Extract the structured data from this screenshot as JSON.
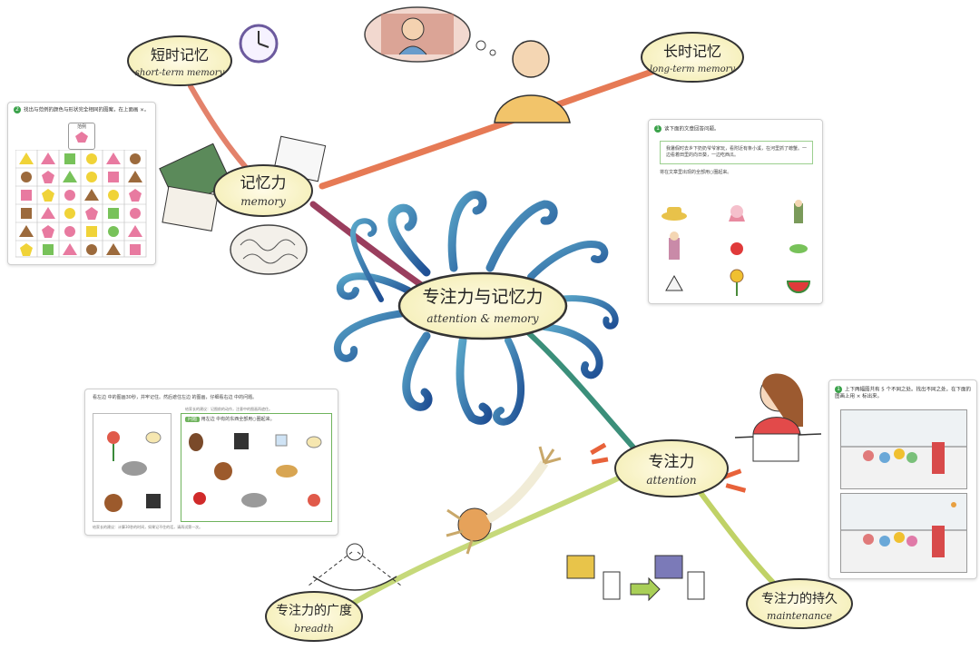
{
  "center": {
    "zh": "专注力与记忆力",
    "en": "attention & memory"
  },
  "memory": {
    "zh": "记忆力",
    "en": "memory"
  },
  "short_term": {
    "zh": "短时记忆",
    "en": "short-term memory"
  },
  "long_term": {
    "zh": "长时记忆",
    "en": "long-term memory"
  },
  "attention": {
    "zh": "专注力",
    "en": "attention"
  },
  "breadth": {
    "zh": "专注力的广度",
    "en": "breadth"
  },
  "maintenance": {
    "zh": "专注力的持久",
    "en": "maintenance"
  },
  "card_shapes": {
    "num": "2",
    "instruction": "找出与范例的颜色与形状完全相同的图案，在上面画 ×。",
    "example_label": "范例"
  },
  "card_reading": {
    "num": "1",
    "instruction": "读下面的文章回答问题。",
    "passage": "我暑假时去乡下奶奶爷爷家玩，看附近有条小溪，在河里抓了螃蟹。一边看着田里的向日葵，一边吃西瓜。",
    "question": "将在文章里出现的全部用○圈起来。"
  },
  "card_memory": {
    "line1": "看左边    中的图画30秒，并牢记住。然后遮住左边    的图画，仔细看右边    中的问题。",
    "note_top": "给家长的建议：记图前的动作，注意中的图画再遮住。",
    "question_tag": "问题",
    "question": "用左边    中有的东西全部用○圈起来。",
    "note_bottom": "给家长的建议：计算30秒的时间，如果记不住的话，请再试第一次。"
  },
  "card_diff": {
    "num": "1",
    "instruction": "上下两幅图共有 5 个不同之处。找出不同之处，在下面的图画上用 × 标出来。"
  },
  "colors": {
    "memory_branch": "#e0735a",
    "longterm_branch": "#e67a55",
    "center_branch": "#9a3e5e",
    "attention_branch": "#3b8f7a",
    "breadth_branch": "#b7cf6a",
    "maintenance_branch": "#b8cc5e",
    "swirl": "#2f6fa8",
    "node_fill": "#fdf6d8"
  }
}
